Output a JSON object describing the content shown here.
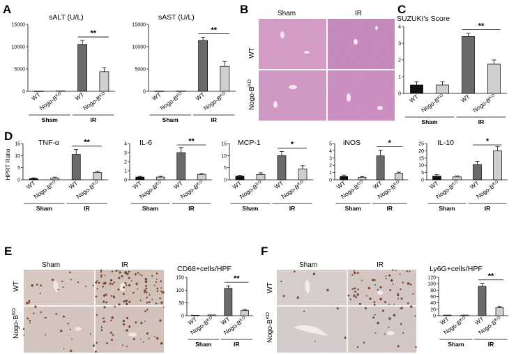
{
  "panel_letters": {
    "A": "A",
    "B": "B",
    "C": "C",
    "D": "D",
    "E": "E",
    "F": "F"
  },
  "group_labels": {
    "sham": "Sham",
    "ir": "IR"
  },
  "genotype_labels": {
    "wt": "WT",
    "ko_base": "Nogo-B",
    "ko_sup": "KO"
  },
  "histology": {
    "col_sham": "Sham",
    "col_ir": "IR",
    "row_wt": "WT",
    "row_ko_base": "Nogo-B",
    "row_ko_sup": "KO",
    "he_colors": {
      "sham": "#d391c6",
      "ir": "#c77fbd",
      "wt_sham": "#d996c8",
      "ko_ir": "#cf86c1"
    },
    "ihc_colors": {
      "base": "#d9c8c0",
      "dots": "#7a4430"
    }
  },
  "y_axis_label_D": "HPRT Ratio",
  "chart_data": [
    {
      "id": "sALT",
      "type": "bar",
      "title": "sALT (U/L)",
      "ylim": [
        0,
        15000
      ],
      "yticks": [
        "0",
        "5000",
        "10000",
        "15000"
      ],
      "tickvals": [
        0,
        5000,
        10000,
        15000
      ],
      "categories": [
        "WT",
        "Nogo-BKO",
        "WT",
        "Nogo-BKO"
      ],
      "groups": [
        "Sham",
        "IR"
      ],
      "values": [
        40,
        80,
        10500,
        4400
      ],
      "errors": [
        0,
        0,
        900,
        900
      ],
      "sig": {
        "label": "**",
        "between": [
          2,
          3
        ]
      },
      "colors": [
        "#6b6b6b",
        "#cfcfcf",
        "#6b6b6b",
        "#cfcfcf"
      ]
    },
    {
      "id": "sAST",
      "type": "bar",
      "title": "sAST (U/L)",
      "ylim": [
        0,
        15000
      ],
      "yticks": [
        "0",
        "5000",
        "10000",
        "15000"
      ],
      "tickvals": [
        0,
        5000,
        10000,
        15000
      ],
      "categories": [
        "WT",
        "Nogo-BKO",
        "WT",
        "Nogo-BKO"
      ],
      "groups": [
        "Sham",
        "IR"
      ],
      "values": [
        40,
        60,
        11400,
        5600
      ],
      "errors": [
        0,
        0,
        700,
        1100
      ],
      "sig": {
        "label": "**",
        "between": [
          2,
          3
        ]
      },
      "colors": [
        "#6b6b6b",
        "#cfcfcf",
        "#6b6b6b",
        "#cfcfcf"
      ]
    },
    {
      "id": "suzuki",
      "type": "bar",
      "title": "SUZUKI's Score",
      "ylim": [
        0,
        4
      ],
      "yticks": [
        "0",
        "1",
        "2",
        "3",
        "4"
      ],
      "tickvals": [
        0,
        1,
        2,
        3,
        4
      ],
      "categories": [
        "WT",
        "Nogo-BKO",
        "WT",
        "Nogo-BKO"
      ],
      "groups": [
        "Sham",
        "IR"
      ],
      "values": [
        0.5,
        0.5,
        3.4,
        1.75
      ],
      "errors": [
        0.2,
        0.2,
        0.2,
        0.25
      ],
      "sig": {
        "label": "**",
        "between": [
          2,
          3
        ]
      },
      "colors": [
        "#111111",
        "#cfcfcf",
        "#6b6b6b",
        "#cfcfcf"
      ]
    },
    {
      "id": "tnf",
      "type": "bar",
      "title": "TNF-α",
      "ylim": [
        0,
        15
      ],
      "yticks": [
        "0",
        "5",
        "10",
        "15"
      ],
      "tickvals": [
        0,
        5,
        10,
        15
      ],
      "categories": [
        "WT",
        "Nogo-BKO",
        "WT",
        "Nogo-BKO"
      ],
      "groups": [
        "Sham",
        "IR"
      ],
      "values": [
        0.5,
        0.7,
        10.5,
        3.0
      ],
      "errors": [
        0.3,
        0.4,
        2.0,
        0.5
      ],
      "sig": {
        "label": "**",
        "between": [
          2,
          3
        ]
      },
      "colors": [
        "#111111",
        "#cfcfcf",
        "#6b6b6b",
        "#cfcfcf"
      ]
    },
    {
      "id": "il6",
      "type": "bar",
      "title": "IL-6",
      "ylim": [
        0,
        4
      ],
      "yticks": [
        "0",
        "1",
        "2",
        "3",
        "4"
      ],
      "tickvals": [
        0,
        1,
        2,
        3,
        4
      ],
      "categories": [
        "WT",
        "Nogo-BKO",
        "WT",
        "Nogo-BKO"
      ],
      "groups": [
        "Sham",
        "IR"
      ],
      "values": [
        0.3,
        0.3,
        3.0,
        0.6
      ],
      "errors": [
        0.08,
        0.08,
        0.55,
        0.1
      ],
      "sig": {
        "label": "**",
        "between": [
          2,
          3
        ]
      },
      "colors": [
        "#111111",
        "#cfcfcf",
        "#6b6b6b",
        "#cfcfcf"
      ]
    },
    {
      "id": "mcp1",
      "type": "bar",
      "title": "MCP-1",
      "ylim": [
        0,
        15
      ],
      "yticks": [
        "0",
        "5",
        "10",
        "15"
      ],
      "tickvals": [
        0,
        5,
        10,
        15
      ],
      "categories": [
        "WT",
        "Nogo-BKO",
        "WT",
        "Nogo-BKO"
      ],
      "groups": [
        "Sham",
        "IR"
      ],
      "values": [
        1.5,
        2.2,
        10.0,
        4.5
      ],
      "errors": [
        0.3,
        0.7,
        1.7,
        1.3
      ],
      "sig": {
        "label": "*",
        "between": [
          2,
          3
        ]
      },
      "colors": [
        "#111111",
        "#cfcfcf",
        "#6b6b6b",
        "#cfcfcf"
      ]
    },
    {
      "id": "inos",
      "type": "bar",
      "title": "iNOS",
      "ylim": [
        0,
        5
      ],
      "yticks": [
        "0",
        "1",
        "2",
        "3",
        "4",
        "5"
      ],
      "tickvals": [
        0,
        1,
        2,
        3,
        4,
        5
      ],
      "categories": [
        "WT",
        "Nogo-BKO",
        "WT",
        "Nogo-BKO"
      ],
      "groups": [
        "Sham",
        "IR"
      ],
      "values": [
        0.45,
        0.35,
        3.3,
        0.9
      ],
      "errors": [
        0.2,
        0.1,
        0.8,
        0.15
      ],
      "sig": {
        "label": "*",
        "between": [
          2,
          3
        ]
      },
      "colors": [
        "#111111",
        "#cfcfcf",
        "#6b6b6b",
        "#cfcfcf"
      ]
    },
    {
      "id": "il10",
      "type": "bar",
      "title": "IL-10",
      "ylim": [
        0,
        25
      ],
      "yticks": [
        "0",
        "5",
        "10",
        "15",
        "20",
        "25"
      ],
      "tickvals": [
        0,
        5,
        10,
        15,
        20,
        25
      ],
      "categories": [
        "WT",
        "Nogo-BKO",
        "WT",
        "Nogo-BKO"
      ],
      "groups": [
        "Sham",
        "IR"
      ],
      "values": [
        2.5,
        2.0,
        10.5,
        20.0
      ],
      "errors": [
        1.0,
        0.6,
        2.2,
        2.8
      ],
      "sig": {
        "label": "*",
        "between": [
          2,
          3
        ]
      },
      "colors": [
        "#111111",
        "#cfcfcf",
        "#6b6b6b",
        "#cfcfcf"
      ]
    },
    {
      "id": "cd68",
      "type": "bar",
      "title": "CD68+cells/HPF",
      "ylim": [
        0,
        150
      ],
      "yticks": [
        "0",
        "50",
        "100",
        "150"
      ],
      "tickvals": [
        0,
        50,
        100,
        150
      ],
      "categories": [
        "WT",
        "Nogo-BKO",
        "WT",
        "Nogo-BKO"
      ],
      "groups": [
        "Sham",
        "IR"
      ],
      "values": [
        2,
        3,
        107,
        20
      ],
      "errors": [
        0,
        0,
        10,
        4
      ],
      "sig": {
        "label": "**",
        "between": [
          2,
          3
        ]
      },
      "colors": [
        "#6b6b6b",
        "#cfcfcf",
        "#6b6b6b",
        "#cfcfcf"
      ]
    },
    {
      "id": "ly6g",
      "type": "bar",
      "title": "Ly6G+cells/HPF",
      "ylim": [
        0,
        120
      ],
      "yticks": [
        "0",
        "20",
        "40",
        "60",
        "80",
        "100",
        "120"
      ],
      "tickvals": [
        0,
        20,
        40,
        60,
        80,
        100,
        120
      ],
      "categories": [
        "WT",
        "Nogo-BKO",
        "WT",
        "Nogo-BKO"
      ],
      "groups": [
        "Sham",
        "IR"
      ],
      "values": [
        2,
        2,
        92,
        25
      ],
      "errors": [
        0,
        0,
        9,
        4
      ],
      "sig": {
        "label": "**",
        "between": [
          2,
          3
        ]
      },
      "colors": [
        "#6b6b6b",
        "#cfcfcf",
        "#6b6b6b",
        "#cfcfcf"
      ]
    }
  ]
}
